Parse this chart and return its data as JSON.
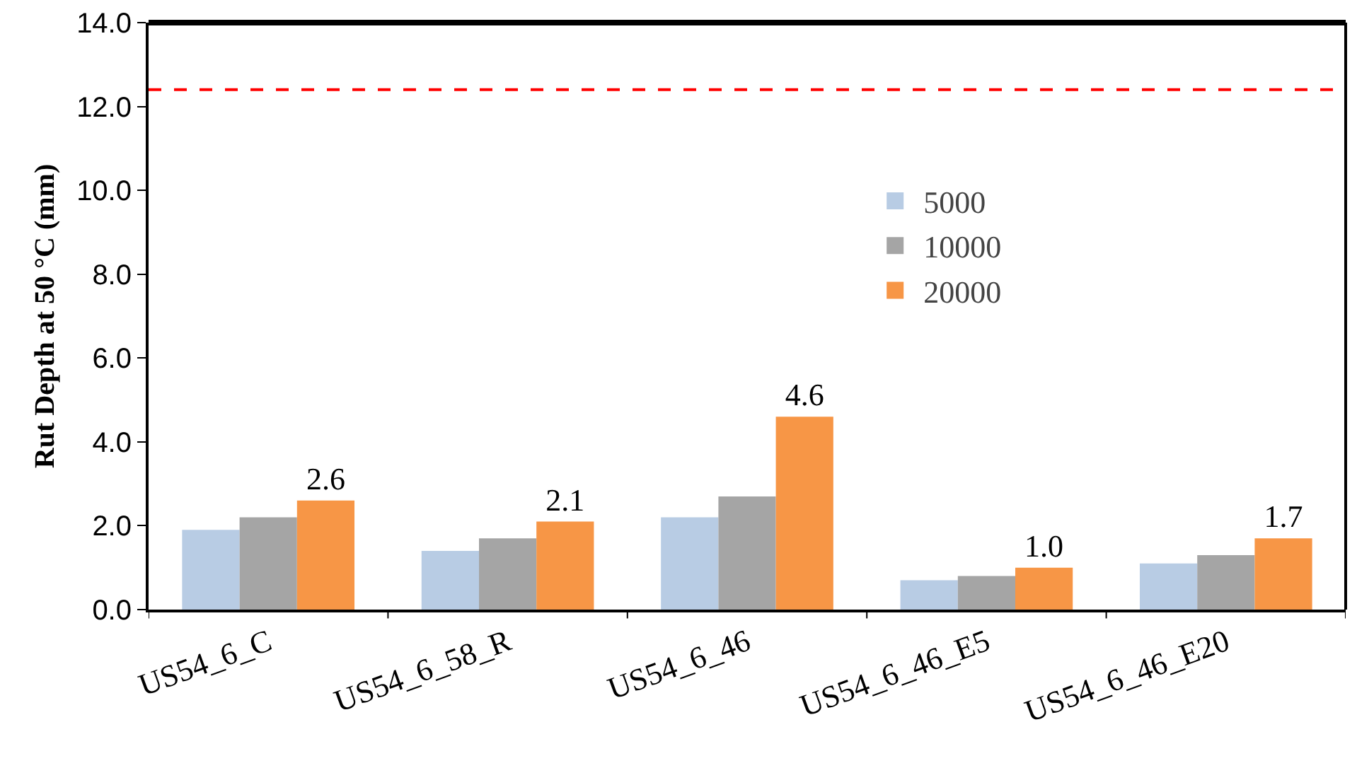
{
  "chart_data": {
    "type": "bar",
    "ylabel": "Rut Depth at 50 °C (mm)",
    "categories": [
      "US54_6_C",
      "US54_6_58_R",
      "US54_6_46",
      "US54_6_46_E5",
      "US54_6_46_E20"
    ],
    "series": [
      {
        "name": "5000",
        "color": "#b8cce4",
        "values": [
          1.9,
          1.4,
          2.2,
          0.7,
          1.1
        ]
      },
      {
        "name": "10000",
        "color": "#a5a5a5",
        "values": [
          2.2,
          1.7,
          2.7,
          0.8,
          1.3
        ]
      },
      {
        "name": "20000",
        "color": "#f79646",
        "values": [
          2.6,
          2.1,
          4.6,
          1.0,
          1.7
        ],
        "value_labels": [
          "2.6",
          "2.1",
          "4.6",
          "1.0",
          "1.7"
        ]
      }
    ],
    "ylim": [
      0,
      14
    ],
    "yticks": [
      {
        "value": 0,
        "label": "0.0"
      },
      {
        "value": 2,
        "label": "2.0"
      },
      {
        "value": 4,
        "label": "4.0"
      },
      {
        "value": 6,
        "label": "6.0"
      },
      {
        "value": 8,
        "label": "8.0"
      },
      {
        "value": 10,
        "label": "10.0"
      },
      {
        "value": 12,
        "label": "12.0"
      },
      {
        "value": 14,
        "label": "14.0"
      }
    ],
    "ref_lines": [
      {
        "axis": "y",
        "value": 12.4,
        "color": "#ff0000",
        "line_style": "dashed"
      }
    ],
    "grid": false,
    "legend": "right"
  }
}
